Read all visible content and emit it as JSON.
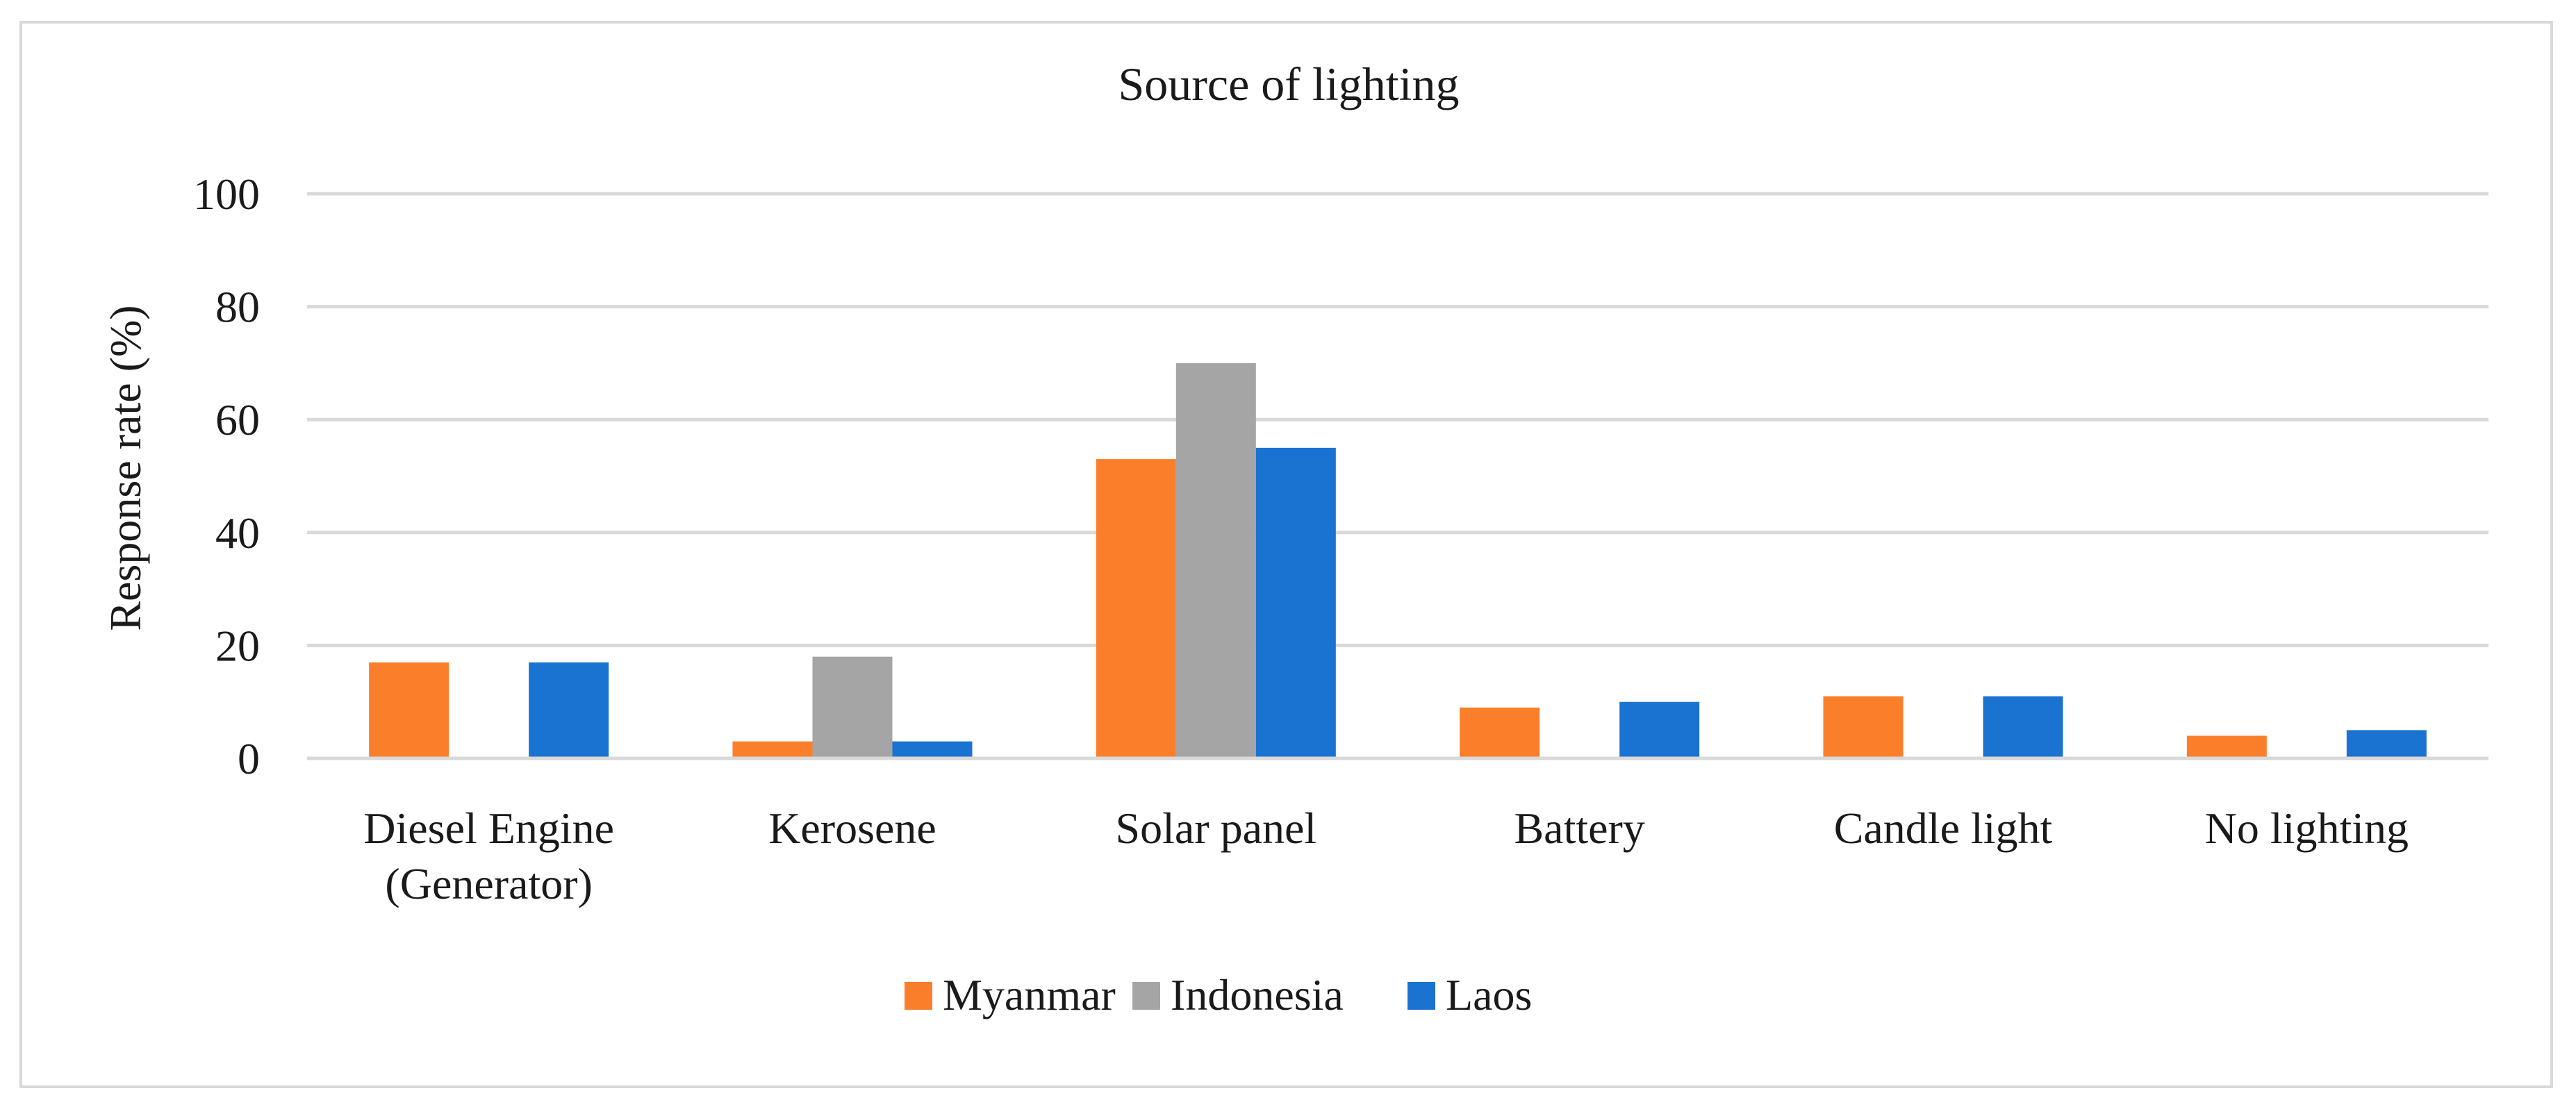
{
  "chart_data": {
    "type": "bar",
    "title": "Source of lighting",
    "xlabel": "",
    "ylabel": "Response rate (%)",
    "ylim": [
      0,
      100
    ],
    "yticks": [
      0,
      20,
      40,
      60,
      80,
      100
    ],
    "ytick_labels": [
      "0",
      "20",
      "40",
      "60",
      "80",
      "100"
    ],
    "categories": [
      [
        "Diesel Engine",
        "(Generator)"
      ],
      [
        "Kerosene"
      ],
      [
        "Solar panel"
      ],
      [
        "Battery"
      ],
      [
        "Candle light"
      ],
      [
        "No lighting"
      ]
    ],
    "series": [
      {
        "name": "Myanmar",
        "color": "#fb7f2a",
        "values": [
          17,
          3,
          53,
          9,
          11,
          4
        ]
      },
      {
        "name": "Indonesia",
        "color": "#a5a5a5",
        "values": [
          0,
          18,
          70,
          0,
          0,
          0
        ]
      },
      {
        "name": "Laos",
        "color": "#1a73d1",
        "values": [
          17,
          3,
          55,
          10,
          11,
          5
        ]
      }
    ],
    "grid": true,
    "legend": "bottom-center"
  }
}
